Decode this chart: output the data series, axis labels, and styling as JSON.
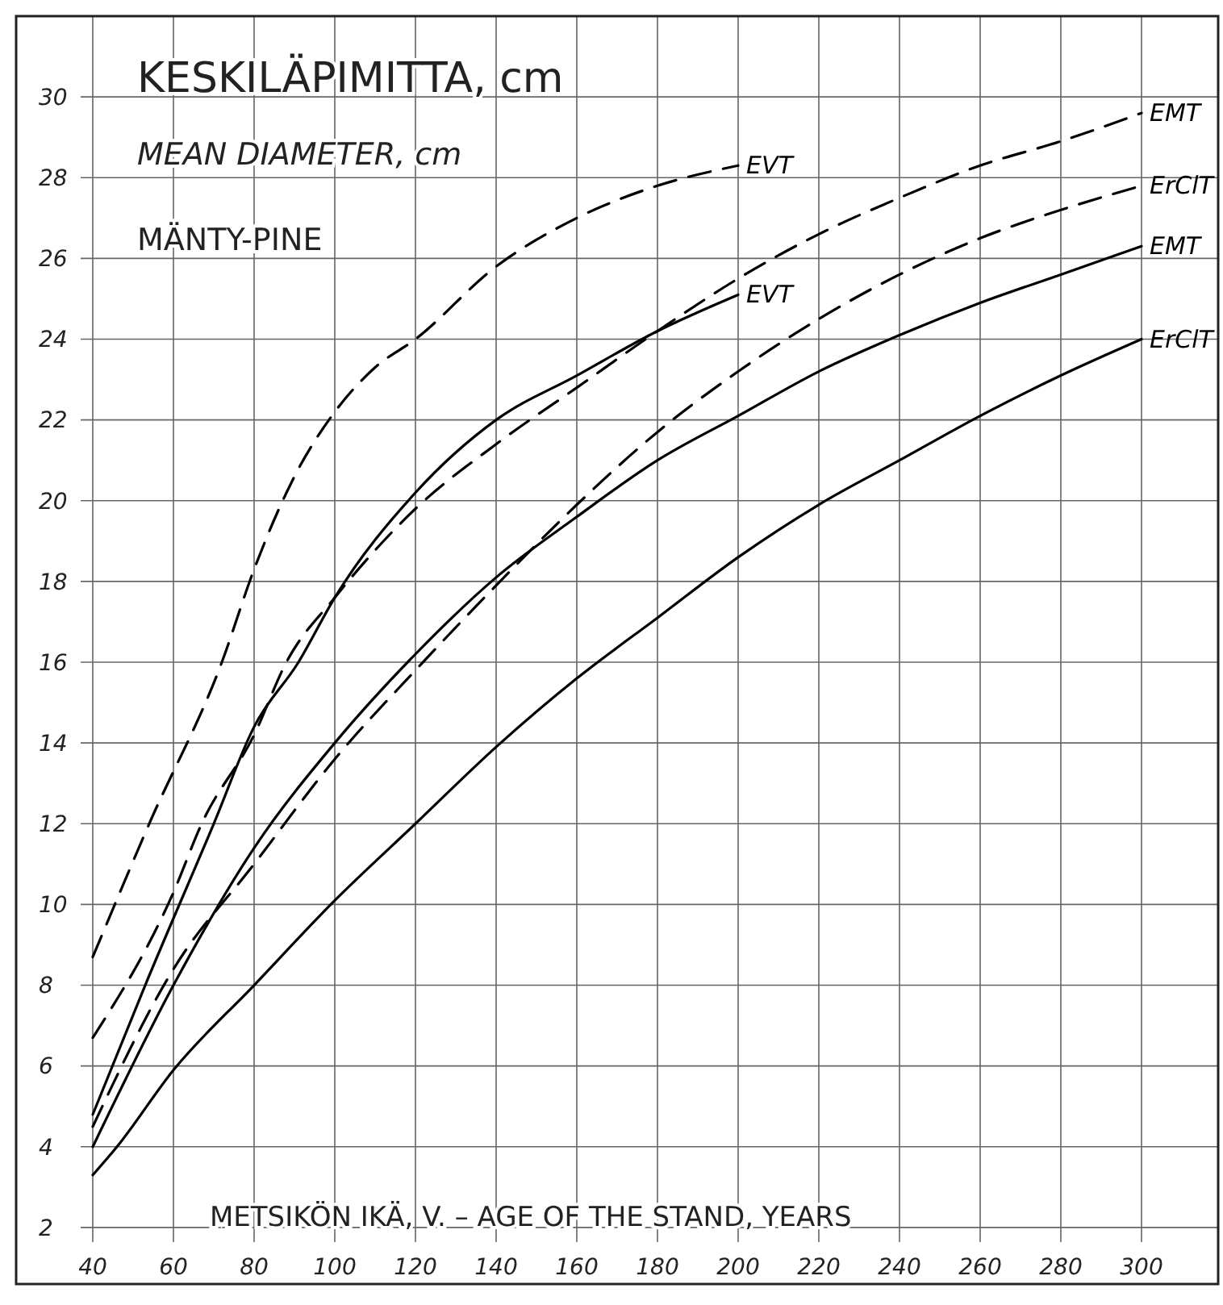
{
  "chart_data": {
    "type": "line",
    "title": "KESKILÄPIMITTA, cm",
    "subtitle": "MEAN DIAMETER, cm",
    "annotations": [
      "MÄNTY-PINE"
    ],
    "xlabel": "METSIKÖN IKÄ, V. – AGE OF THE STAND, YEARS",
    "xlim": [
      21,
      319
    ],
    "xticks": [
      40,
      60,
      80,
      100,
      120,
      140,
      160,
      180,
      200,
      220,
      240,
      260,
      280,
      300
    ],
    "ylim": [
      0.6,
      32
    ],
    "yticks": [
      2,
      4,
      6,
      8,
      10,
      12,
      14,
      16,
      18,
      20,
      22,
      24,
      26,
      28,
      30
    ],
    "grid": true,
    "marker": "none",
    "series": [
      {
        "name": "EVT",
        "color": "#000000",
        "line_style": "dashed",
        "x": [
          40,
          54,
          72,
          80,
          90,
          100,
          110,
          120,
          140,
          160,
          180,
          200
        ],
        "values": [
          8.7,
          12,
          16,
          18.3,
          20.6,
          22.2,
          23.3,
          24,
          25.8,
          27,
          27.8,
          28.3
        ]
      },
      {
        "name": "EVT",
        "color": "#000000",
        "line_style": "solid",
        "x": [
          40,
          53,
          70,
          80,
          91,
          100,
          120,
          140,
          160,
          180,
          200
        ],
        "values": [
          4.8,
          8,
          12,
          14.4,
          16,
          17.6,
          20.2,
          22,
          23.1,
          24.2,
          25.1
        ]
      },
      {
        "name": "EMT",
        "color": "#000000",
        "line_style": "dashed",
        "x": [
          40,
          60,
          67,
          80,
          88,
          100,
          120,
          140,
          160,
          180,
          200,
          220,
          240,
          260,
          280,
          300
        ],
        "values": [
          6.7,
          10.3,
          12,
          14.2,
          16,
          17.6,
          19.8,
          21.4,
          22.8,
          24.2,
          25.5,
          26.6,
          27.5,
          28.3,
          28.9,
          29.6
        ]
      },
      {
        "name": "ErClT",
        "color": "#000000",
        "line_style": "dashed",
        "x": [
          40,
          60,
          80,
          100,
          120,
          140,
          160,
          180,
          200,
          220,
          240,
          260,
          280,
          300
        ],
        "values": [
          4.5,
          8.4,
          11,
          13.6,
          15.8,
          17.9,
          19.9,
          21.7,
          23.2,
          24.5,
          25.6,
          26.5,
          27.2,
          27.8
        ]
      },
      {
        "name": "EMT",
        "color": "#000000",
        "line_style": "solid",
        "x": [
          40,
          60,
          80,
          100,
          120,
          140,
          160,
          180,
          200,
          220,
          240,
          260,
          280,
          300
        ],
        "values": [
          4,
          8,
          11.4,
          14,
          16.2,
          18.1,
          19.6,
          21,
          22.1,
          23.2,
          24.1,
          24.9,
          25.6,
          26.3
        ]
      },
      {
        "name": "ErClT",
        "color": "#000000",
        "line_style": "solid",
        "x": [
          40,
          46,
          60,
          80,
          100,
          120,
          140,
          160,
          180,
          200,
          220,
          240,
          260,
          280,
          300
        ],
        "values": [
          3.3,
          4,
          5.9,
          8,
          10.1,
          12,
          13.9,
          15.6,
          17.1,
          18.6,
          19.9,
          21,
          22.1,
          23.1,
          24
        ]
      }
    ]
  }
}
